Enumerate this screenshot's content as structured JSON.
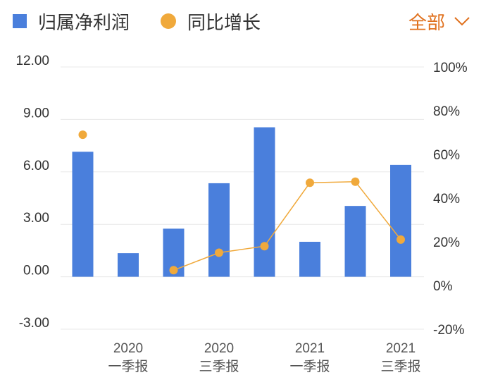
{
  "legend": {
    "bar_label": "归属净利润",
    "line_label": "同比增长"
  },
  "filter": {
    "label": "全部"
  },
  "colors": {
    "bar": "#4a7fdc",
    "line": "#f0a93b",
    "accent": "#e0711e"
  },
  "chart_data": {
    "type": "bar",
    "title": "",
    "xlabel": "",
    "ylabel": "",
    "ylim": [
      -3,
      12
    ],
    "y_ticks": [
      "12.00",
      "9.00",
      "6.00",
      "3.00",
      "0.00",
      "-3.00"
    ],
    "y2lim": [
      -20,
      100
    ],
    "y2_ticks": [
      "100%",
      "80%",
      "60%",
      "40%",
      "20%",
      "0%",
      "-20%"
    ],
    "category_labels": [
      {
        "year": "2020",
        "quarter": "一季报"
      },
      {
        "year": "2020",
        "quarter": "三季报"
      },
      {
        "year": "2021",
        "quarter": "一季报"
      },
      {
        "year": "2021",
        "quarter": "三季报"
      }
    ],
    "series": [
      {
        "name": "归属净利润",
        "type": "bar",
        "axis": "left",
        "values": [
          7.15,
          1.35,
          2.75,
          5.35,
          8.55,
          2.0,
          4.05,
          6.4
        ]
      },
      {
        "name": "同比增长",
        "type": "line",
        "axis": "right",
        "values": [
          69,
          null,
          7,
          15,
          18,
          47,
          47.5,
          21
        ]
      }
    ],
    "grid": true,
    "legend_position": "top-left"
  }
}
